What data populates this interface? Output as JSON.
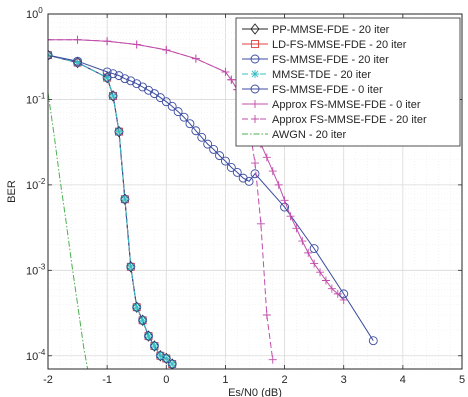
{
  "chart_data": {
    "type": "line",
    "xlabel": "Es/N0 (dB)",
    "ylabel": "BER",
    "yscale": "log",
    "xlim": [
      -2,
      5
    ],
    "ylim": [
      7e-05,
      1
    ],
    "grid": true,
    "legend_position": "top-right",
    "x_ticks": [
      "-2",
      "-1",
      "0",
      "1",
      "2",
      "3",
      "4",
      "5"
    ],
    "y_ticks": [
      {
        "value": 1,
        "base": "10",
        "exp": "0"
      },
      {
        "value": 0.1,
        "base": "10",
        "exp": "-1"
      },
      {
        "value": 0.01,
        "base": "10",
        "exp": "-2"
      },
      {
        "value": 0.001,
        "base": "10",
        "exp": "-3"
      },
      {
        "value": 0.0001,
        "base": "10",
        "exp": "-4"
      }
    ],
    "series": [
      {
        "name": "PP-MMSE-FDE - 20 iter",
        "color": "#262626",
        "dash": "solid",
        "marker": "diamond",
        "x": [
          -2,
          -1.5,
          -1,
          -0.9,
          -0.8,
          -0.7,
          -0.6,
          -0.5,
          -0.4,
          -0.3,
          -0.2,
          -0.1,
          0,
          0.1
        ],
        "y": [
          0.33,
          0.27,
          0.18,
          0.11,
          0.042,
          0.0068,
          0.0011,
          0.00037,
          0.00026,
          0.00017,
          0.00013,
          0.0001,
          9.3e-05,
          8e-05
        ]
      },
      {
        "name": "LD-FS-MMSE-FDE - 20 iter",
        "color": "#e0413b",
        "dash": "solid",
        "marker": "square",
        "x": [
          -2,
          -1.5,
          -1,
          -0.9,
          -0.8,
          -0.7,
          -0.6,
          -0.5,
          -0.4,
          -0.3,
          -0.2,
          -0.1,
          0,
          0.1
        ],
        "y": [
          0.33,
          0.27,
          0.18,
          0.11,
          0.042,
          0.0068,
          0.0011,
          0.00037,
          0.00026,
          0.00017,
          0.00013,
          0.0001,
          9.3e-05,
          8e-05
        ]
      },
      {
        "name": "FS-MMSE-FDE - 20 iter",
        "color": "#3b4ba0",
        "dash": "solid",
        "marker": "circle",
        "x": [
          -2,
          -1.5,
          -1,
          -0.9,
          -0.8,
          -0.7,
          -0.6,
          -0.5,
          -0.4,
          -0.3,
          -0.2,
          -0.1,
          0,
          0.1
        ],
        "y": [
          0.33,
          0.27,
          0.18,
          0.11,
          0.042,
          0.0068,
          0.0011,
          0.00037,
          0.00026,
          0.00017,
          0.00013,
          0.0001,
          9.3e-05,
          8e-05
        ]
      },
      {
        "name": "MMSE-TDE - 20 iter",
        "color": "#35bfc4",
        "dash": "dashed",
        "marker": "asterisk",
        "x": [
          -2,
          -1.5,
          -1,
          -0.9,
          -0.8,
          -0.7,
          -0.6,
          -0.5,
          -0.4,
          -0.3,
          -0.2,
          -0.1,
          0,
          0.1
        ],
        "y": [
          0.33,
          0.27,
          0.18,
          0.11,
          0.042,
          0.0068,
          0.0011,
          0.00037,
          0.00026,
          0.00017,
          0.00013,
          0.0001,
          9.3e-05,
          8e-05
        ]
      },
      {
        "name": "FS-MMSE-FDE - 0 iter",
        "color": "#3b4ba0",
        "dash": "solid",
        "marker": "circle",
        "x": [
          -2,
          -1.5,
          -1,
          -0.9,
          -0.8,
          -0.7,
          -0.6,
          -0.5,
          -0.4,
          -0.3,
          -0.2,
          -0.1,
          0,
          0.1,
          0.2,
          0.3,
          0.4,
          0.5,
          0.6,
          0.7,
          0.8,
          0.9,
          1,
          1.1,
          1.2,
          1.3,
          1.4,
          1.5,
          2,
          2.5,
          3,
          3.5
        ],
        "y": [
          0.33,
          0.28,
          0.21,
          0.2,
          0.19,
          0.175,
          0.165,
          0.153,
          0.14,
          0.128,
          0.117,
          0.105,
          0.094,
          0.083,
          0.072,
          0.062,
          0.052,
          0.043,
          0.036,
          0.03,
          0.026,
          0.022,
          0.019,
          0.016,
          0.014,
          0.012,
          0.011,
          0.0135,
          0.0055,
          0.0018,
          0.00053,
          0.00015
        ]
      },
      {
        "name": "Approx FS-MMSE-FDE - 0 iter",
        "color": "#c04daa",
        "dash": "solid",
        "marker": "plus",
        "x": [
          -2,
          -1.5,
          -1,
          -0.5,
          0,
          0.5,
          1,
          1.1,
          1.2,
          1.3,
          1.4,
          1.5,
          1.6,
          1.7,
          1.8,
          1.9,
          2,
          2.1,
          2.2,
          2.3,
          2.4,
          2.5,
          2.6,
          2.7,
          2.8,
          2.9,
          3
        ],
        "y": [
          0.5,
          0.5,
          0.48,
          0.44,
          0.38,
          0.3,
          0.21,
          0.17,
          0.13,
          0.1,
          0.075,
          0.05,
          0.03,
          0.021,
          0.0145,
          0.01,
          0.0066,
          0.0043,
          0.0031,
          0.0022,
          0.0016,
          0.0012,
          0.00095,
          0.00076,
          0.00061,
          0.00053,
          0.00045
        ]
      },
      {
        "name": "Approx FS-MMSE-FDE - 20 iter",
        "color": "#c04daa",
        "dash": "dashed",
        "marker": "plus",
        "x": [
          -2,
          -1.5,
          -1,
          -0.5,
          0,
          0.5,
          1,
          1.1,
          1.2,
          1.3,
          1.4,
          1.5,
          1.6,
          1.7,
          1.8
        ],
        "y": [
          0.5,
          0.5,
          0.48,
          0.44,
          0.38,
          0.3,
          0.21,
          0.17,
          0.13,
          0.085,
          0.05,
          0.018,
          0.0035,
          0.0003,
          9e-05
        ]
      },
      {
        "name": "AWGN - 20 iter",
        "color": "#4caf50",
        "dash": "dashdot",
        "marker": "none",
        "x": [
          -2,
          -1.9,
          -1.8,
          -1.7,
          -1.6,
          -1.5,
          -1.4,
          -1.33
        ],
        "y": [
          0.12,
          0.04,
          0.012,
          0.004,
          0.0012,
          0.0004,
          0.00013,
          7e-05
        ]
      }
    ]
  }
}
